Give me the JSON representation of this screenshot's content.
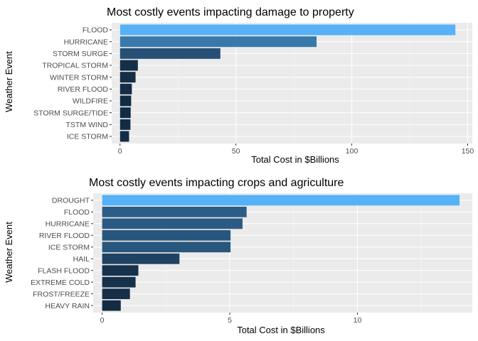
{
  "chart_data": [
    {
      "type": "bar",
      "orientation": "horizontal",
      "title": "Most costly events impacting damage to property",
      "xlabel": "Total Cost in $Billions",
      "ylabel": "Weather Event",
      "categories": [
        "FLOOD",
        "HURRICANE",
        "STORM SURGE",
        "TROPICAL STORM",
        "WINTER STORM",
        "RIVER FLOOD",
        "WILDFIRE",
        "STORM SURGE/TIDE",
        "TSTM WIND",
        "ICE STORM"
      ],
      "values": [
        144.7,
        84.8,
        43.3,
        7.7,
        6.7,
        5.1,
        4.8,
        4.6,
        4.5,
        3.9
      ],
      "xlim": [
        -3.6,
        152
      ],
      "xticks": [
        0,
        50,
        100,
        150
      ],
      "fill_scale": {
        "low": "#132b43",
        "high": "#56b1f7"
      },
      "grid": true
    },
    {
      "type": "bar",
      "orientation": "horizontal",
      "title": "Most costly events impacting crops and agriculture",
      "xlabel": "Total Cost in $Billions",
      "ylabel": "Weather Event",
      "categories": [
        "DROUGHT",
        "FLOOD",
        "HURRICANE",
        "RIVER FLOOD",
        "ICE STORM",
        "HAIL",
        "FLASH FLOOD",
        "EXTREME COLD",
        "FROST/FREEZE",
        "HEAVY RAIN"
      ],
      "values": [
        14.0,
        5.66,
        5.5,
        5.03,
        5.03,
        3.03,
        1.42,
        1.31,
        1.09,
        0.73
      ],
      "xlim": [
        -0.35,
        14.5
      ],
      "xticks": [
        0,
        5,
        10
      ],
      "fill_scale": {
        "low": "#132b43",
        "high": "#56b1f7"
      },
      "grid": true
    }
  ]
}
